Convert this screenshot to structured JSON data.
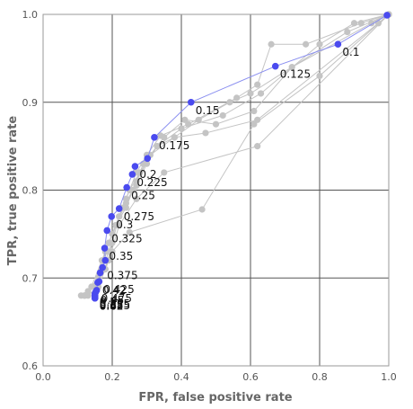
{
  "chart_data": {
    "type": "line",
    "xlabel": "FPR, false positive rate",
    "ylabel": "TPR, true positive rate",
    "xlim": [
      0.0,
      1.0
    ],
    "ylim": [
      0.6,
      1.0
    ],
    "x_ticks": [
      "0.0",
      "0.2",
      "0.4",
      "0.6",
      "0.8",
      "1.0"
    ],
    "y_ticks": [
      "0.6",
      "0.7",
      "0.8",
      "0.9",
      "1.0"
    ],
    "grid": true,
    "colors": {
      "highlight": "#4a4aef",
      "highlight_line": "#8a8ff0",
      "background_series": "#c4c4c4",
      "grid": "#555555",
      "frame": "#999999"
    },
    "highlighted_series": {
      "points": [
        {
          "x": 0.995,
          "y": 0.999,
          "label": ""
        },
        {
          "x": 0.853,
          "y": 0.966,
          "label": "0.1"
        },
        {
          "x": 0.672,
          "y": 0.941,
          "label": "0.125"
        },
        {
          "x": 0.428,
          "y": 0.9,
          "label": "0.15"
        },
        {
          "x": 0.322,
          "y": 0.86,
          "label": "0.175"
        },
        {
          "x": 0.302,
          "y": 0.836,
          "label": ""
        },
        {
          "x": 0.266,
          "y": 0.827,
          "label": "0.2"
        },
        {
          "x": 0.258,
          "y": 0.818,
          "label": "0.225"
        },
        {
          "x": 0.242,
          "y": 0.803,
          "label": "0.25"
        },
        {
          "x": 0.22,
          "y": 0.779,
          "label": "0.275"
        },
        {
          "x": 0.198,
          "y": 0.77,
          "label": "0.3"
        },
        {
          "x": 0.185,
          "y": 0.754,
          "label": "0.325"
        },
        {
          "x": 0.178,
          "y": 0.734,
          "label": "0.35"
        },
        {
          "x": 0.18,
          "y": 0.72,
          "label": ""
        },
        {
          "x": 0.172,
          "y": 0.712,
          "label": "0.375"
        },
        {
          "x": 0.165,
          "y": 0.706,
          "label": ""
        },
        {
          "x": 0.162,
          "y": 0.696,
          "label": "0.425"
        },
        {
          "x": 0.158,
          "y": 0.695,
          "label": "0.42"
        },
        {
          "x": 0.155,
          "y": 0.686,
          "label": "0.475"
        },
        {
          "x": 0.152,
          "y": 0.684,
          "label": "0.45"
        },
        {
          "x": 0.15,
          "y": 0.682,
          "label": "0.5"
        },
        {
          "x": 0.15,
          "y": 0.68,
          "label": "0.525"
        },
        {
          "x": 0.15,
          "y": 0.679,
          "label": "0.55"
        },
        {
          "x": 0.15,
          "y": 0.678,
          "label": "0.575"
        },
        {
          "x": 0.15,
          "y": 0.677,
          "label": "0.6"
        },
        {
          "x": 0.15,
          "y": 0.677,
          "label": "0.62"
        },
        {
          "x": 0.15,
          "y": 0.677,
          "label": "0.65"
        }
      ]
    },
    "background_series": [
      {
        "points": [
          [
            1.0,
            1.0
          ],
          [
            0.92,
            0.99
          ],
          [
            0.76,
            0.966
          ],
          [
            0.66,
            0.966
          ],
          [
            0.62,
            0.92
          ],
          [
            0.56,
            0.905
          ],
          [
            0.42,
            0.875
          ],
          [
            0.34,
            0.862
          ],
          [
            0.3,
            0.84
          ],
          [
            0.27,
            0.82
          ],
          [
            0.24,
            0.79
          ],
          [
            0.22,
            0.77
          ],
          [
            0.2,
            0.74
          ],
          [
            0.18,
            0.71
          ],
          [
            0.16,
            0.69
          ],
          [
            0.13,
            0.68
          ]
        ]
      },
      {
        "points": [
          [
            1.0,
            1.0
          ],
          [
            0.9,
            0.99
          ],
          [
            0.8,
            0.966
          ],
          [
            0.63,
            0.91
          ],
          [
            0.52,
            0.885
          ],
          [
            0.4,
            0.87
          ],
          [
            0.33,
            0.85
          ],
          [
            0.28,
            0.82
          ],
          [
            0.25,
            0.8
          ],
          [
            0.22,
            0.77
          ],
          [
            0.19,
            0.74
          ],
          [
            0.17,
            0.71
          ],
          [
            0.15,
            0.69
          ],
          [
            0.11,
            0.68
          ]
        ]
      },
      {
        "points": [
          [
            1.0,
            1.0
          ],
          [
            0.88,
            0.98
          ],
          [
            0.6,
            0.91
          ],
          [
            0.54,
            0.9
          ],
          [
            0.45,
            0.88
          ],
          [
            0.38,
            0.86
          ],
          [
            0.31,
            0.84
          ],
          [
            0.27,
            0.81
          ],
          [
            0.24,
            0.78
          ],
          [
            0.21,
            0.76
          ],
          [
            0.19,
            0.73
          ],
          [
            0.16,
            0.7
          ],
          [
            0.12,
            0.68
          ]
        ]
      },
      {
        "points": [
          [
            1.0,
            1.0
          ],
          [
            0.95,
            0.99
          ],
          [
            0.72,
            0.94
          ],
          [
            0.61,
            0.89
          ],
          [
            0.5,
            0.875
          ],
          [
            0.41,
            0.88
          ],
          [
            0.35,
            0.86
          ],
          [
            0.29,
            0.83
          ],
          [
            0.26,
            0.8
          ],
          [
            0.23,
            0.78
          ],
          [
            0.2,
            0.75
          ],
          [
            0.17,
            0.72
          ],
          [
            0.14,
            0.69
          ],
          [
            0.12,
            0.68
          ]
        ]
      },
      {
        "points": [
          [
            1.0,
            1.0
          ],
          [
            0.97,
            0.99
          ],
          [
            0.62,
            0.88
          ],
          [
            0.47,
            0.865
          ],
          [
            0.38,
            0.86
          ],
          [
            0.33,
            0.85
          ],
          [
            0.3,
            0.83
          ],
          [
            0.27,
            0.805
          ],
          [
            0.24,
            0.785
          ],
          [
            0.21,
            0.76
          ],
          [
            0.18,
            0.73
          ],
          [
            0.16,
            0.7
          ],
          [
            0.13,
            0.685
          ]
        ]
      },
      {
        "points": [
          [
            1.0,
            1.0
          ],
          [
            0.8,
            0.93
          ],
          [
            0.61,
            0.875
          ],
          [
            0.46,
            0.778
          ],
          [
            0.25,
            0.752
          ],
          [
            0.2,
            0.73
          ],
          [
            0.18,
            0.71
          ],
          [
            0.15,
            0.69
          ]
        ]
      },
      {
        "points": [
          [
            1.0,
            1.0
          ],
          [
            0.62,
            0.85
          ],
          [
            0.35,
            0.82
          ],
          [
            0.27,
            0.79
          ],
          [
            0.22,
            0.76
          ],
          [
            0.19,
            0.72
          ],
          [
            0.16,
            0.7
          ],
          [
            0.12,
            0.68
          ]
        ]
      }
    ]
  }
}
